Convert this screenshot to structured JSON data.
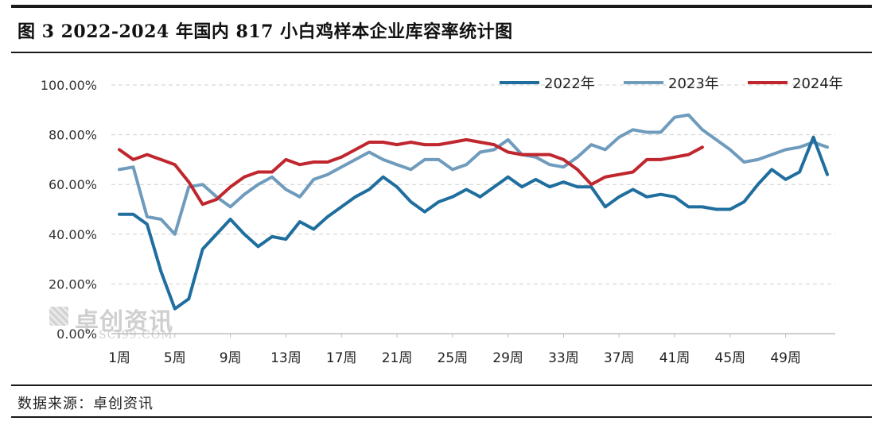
{
  "header": {
    "title": "图 3 2022-2024 年国内 817 小白鸡样本企业库容率统计图"
  },
  "footer": {
    "source": "数据来源：卓创资讯"
  },
  "watermark": {
    "name": "卓创资讯",
    "sub": "SCI99.COM"
  },
  "chart_data": {
    "type": "line",
    "title": "图 3 2022-2024 年国内 817 小白鸡样本企业库容率统计图",
    "xlabel": "",
    "ylabel": "",
    "ylim": [
      0,
      100
    ],
    "yticks": [
      0,
      20,
      40,
      60,
      80,
      100
    ],
    "ytick_labels": [
      "0.00%",
      "20.00%",
      "40.00%",
      "60.00%",
      "80.00%",
      "100.00%"
    ],
    "x_count": 52,
    "xticks": [
      1,
      5,
      9,
      13,
      17,
      21,
      25,
      29,
      33,
      37,
      41,
      45,
      49
    ],
    "xtick_labels": [
      "1周",
      "5周",
      "9周",
      "13周",
      "17周",
      "21周",
      "25周",
      "29周",
      "33周",
      "37周",
      "41周",
      "45周",
      "49周"
    ],
    "grid": true,
    "legend_position": "top-right",
    "series": [
      {
        "name": "2022年",
        "color": "#1f6e9e",
        "values": [
          48,
          48,
          44,
          25,
          10,
          14,
          34,
          40,
          46,
          40,
          35,
          39,
          38,
          45,
          42,
          47,
          51,
          55,
          58,
          63,
          59,
          53,
          49,
          53,
          55,
          58,
          55,
          59,
          63,
          59,
          62,
          59,
          61,
          59,
          59,
          51,
          55,
          58,
          55,
          56,
          55,
          51,
          51,
          50,
          50,
          53,
          60,
          66,
          62,
          65,
          79,
          64
        ]
      },
      {
        "name": "2023年",
        "color": "#6f9bbd",
        "values": [
          66,
          67,
          47,
          46,
          40,
          59,
          60,
          55,
          51,
          56,
          60,
          63,
          58,
          55,
          62,
          64,
          67,
          70,
          73,
          70,
          68,
          66,
          70,
          70,
          66,
          68,
          73,
          74,
          78,
          72,
          71,
          68,
          67,
          71,
          76,
          74,
          79,
          82,
          81,
          81,
          87,
          88,
          82,
          78,
          74,
          69,
          70,
          72,
          74,
          75,
          77,
          75
        ]
      },
      {
        "name": "2024年",
        "color": "#c0262e",
        "values": [
          74,
          70,
          72,
          70,
          68,
          61,
          52,
          54,
          59,
          63,
          65,
          65,
          70,
          68,
          69,
          69,
          71,
          74,
          77,
          77,
          76,
          77,
          76,
          76,
          77,
          78,
          77,
          76,
          73,
          72,
          72,
          72,
          70,
          66,
          60,
          63,
          64,
          65,
          70,
          70,
          71,
          72,
          75
        ]
      }
    ]
  }
}
